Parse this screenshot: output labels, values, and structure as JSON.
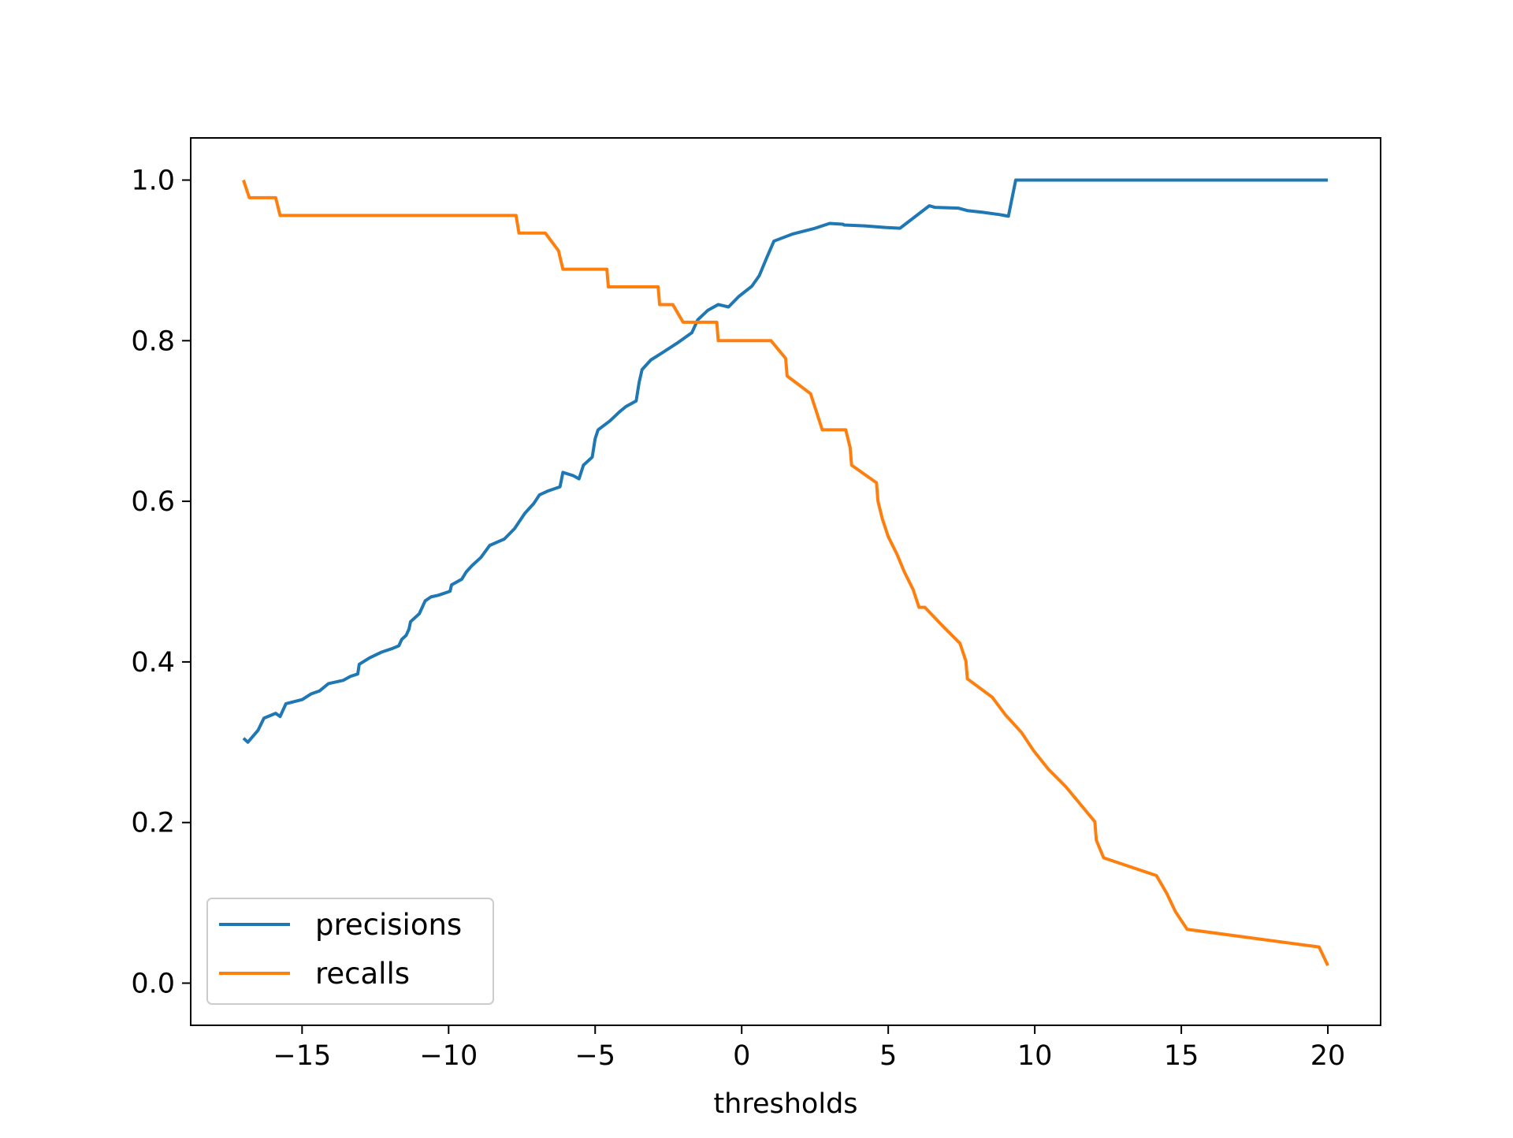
{
  "chart_data": {
    "type": "line",
    "title": "",
    "xlabel": "thresholds",
    "ylabel": "",
    "xlim": [
      -18.8,
      21.8
    ],
    "ylim": [
      -0.0525,
      1.0525
    ],
    "xticks": [
      -15,
      -10,
      -5,
      0,
      5,
      10,
      15,
      20
    ],
    "xtick_labels": [
      "−15",
      "−10",
      "−5",
      "0",
      "5",
      "10",
      "15",
      "20"
    ],
    "yticks": [
      0.0,
      0.2,
      0.4,
      0.6,
      0.8,
      1.0
    ],
    "ytick_labels": [
      "0.0",
      "0.2",
      "0.4",
      "0.6",
      "0.8",
      "1.0"
    ],
    "grid": false,
    "legend_position": "lower-left",
    "series": [
      {
        "name": "precisions",
        "color": "#1f77b4",
        "points": [
          [
            -17.0,
            0.305
          ],
          [
            -16.85,
            0.3
          ],
          [
            -16.5,
            0.315
          ],
          [
            -16.3,
            0.33
          ],
          [
            -15.9,
            0.336
          ],
          [
            -15.75,
            0.332
          ],
          [
            -15.55,
            0.348
          ],
          [
            -15.0,
            0.353
          ],
          [
            -14.7,
            0.36
          ],
          [
            -14.4,
            0.364
          ],
          [
            -14.1,
            0.373
          ],
          [
            -13.6,
            0.377
          ],
          [
            -13.35,
            0.382
          ],
          [
            -13.1,
            0.385
          ],
          [
            -13.05,
            0.397
          ],
          [
            -12.7,
            0.405
          ],
          [
            -12.3,
            0.412
          ],
          [
            -11.9,
            0.417
          ],
          [
            -11.7,
            0.42
          ],
          [
            -11.6,
            0.428
          ],
          [
            -11.45,
            0.433
          ],
          [
            -11.35,
            0.441
          ],
          [
            -11.3,
            0.45
          ],
          [
            -11.0,
            0.46
          ],
          [
            -10.8,
            0.476
          ],
          [
            -10.6,
            0.481
          ],
          [
            -10.35,
            0.483
          ],
          [
            -9.95,
            0.488
          ],
          [
            -9.9,
            0.496
          ],
          [
            -9.55,
            0.503
          ],
          [
            -9.4,
            0.512
          ],
          [
            -9.2,
            0.52
          ],
          [
            -8.9,
            0.53
          ],
          [
            -8.6,
            0.545
          ],
          [
            -8.1,
            0.553
          ],
          [
            -7.75,
            0.566
          ],
          [
            -7.4,
            0.585
          ],
          [
            -7.1,
            0.597
          ],
          [
            -6.9,
            0.608
          ],
          [
            -6.6,
            0.613
          ],
          [
            -6.2,
            0.618
          ],
          [
            -6.1,
            0.636
          ],
          [
            -5.75,
            0.632
          ],
          [
            -5.55,
            0.628
          ],
          [
            -5.4,
            0.645
          ],
          [
            -5.1,
            0.655
          ],
          [
            -5.0,
            0.678
          ],
          [
            -4.9,
            0.689
          ],
          [
            -4.5,
            0.7
          ],
          [
            -4.15,
            0.712
          ],
          [
            -3.95,
            0.718
          ],
          [
            -3.6,
            0.725
          ],
          [
            -3.5,
            0.748
          ],
          [
            -3.4,
            0.764
          ],
          [
            -3.1,
            0.776
          ],
          [
            -2.75,
            0.784
          ],
          [
            -2.2,
            0.797
          ],
          [
            -1.7,
            0.81
          ],
          [
            -1.5,
            0.826
          ],
          [
            -1.15,
            0.838
          ],
          [
            -0.8,
            0.845
          ],
          [
            -0.45,
            0.842
          ],
          [
            -0.1,
            0.855
          ],
          [
            0.35,
            0.868
          ],
          [
            0.6,
            0.881
          ],
          [
            0.85,
            0.903
          ],
          [
            1.1,
            0.924
          ],
          [
            1.75,
            0.933
          ],
          [
            2.5,
            0.94
          ],
          [
            3.0,
            0.946
          ],
          [
            3.45,
            0.945
          ],
          [
            3.5,
            0.944
          ],
          [
            4.2,
            0.943
          ],
          [
            4.9,
            0.941
          ],
          [
            5.4,
            0.94
          ],
          [
            6.4,
            0.968
          ],
          [
            6.6,
            0.966
          ],
          [
            7.4,
            0.965
          ],
          [
            7.7,
            0.962
          ],
          [
            8.2,
            0.96
          ],
          [
            8.8,
            0.957
          ],
          [
            9.1,
            0.955
          ],
          [
            9.35,
            1.0
          ],
          [
            15.3,
            1.0
          ],
          [
            20.0,
            1.0
          ]
        ]
      },
      {
        "name": "recalls",
        "color": "#ff7f0e",
        "points": [
          [
            -17.0,
            1.0
          ],
          [
            -16.8,
            0.978
          ],
          [
            -15.9,
            0.978
          ],
          [
            -15.75,
            0.956
          ],
          [
            -7.7,
            0.956
          ],
          [
            -7.6,
            0.934
          ],
          [
            -6.7,
            0.934
          ],
          [
            -6.25,
            0.912
          ],
          [
            -6.1,
            0.889
          ],
          [
            -4.6,
            0.889
          ],
          [
            -4.55,
            0.867
          ],
          [
            -2.85,
            0.867
          ],
          [
            -2.8,
            0.845
          ],
          [
            -2.35,
            0.845
          ],
          [
            -2.0,
            0.823
          ],
          [
            -0.85,
            0.823
          ],
          [
            -0.8,
            0.8
          ],
          [
            1.0,
            0.8
          ],
          [
            1.5,
            0.778
          ],
          [
            1.55,
            0.756
          ],
          [
            2.35,
            0.734
          ],
          [
            2.75,
            0.689
          ],
          [
            3.55,
            0.689
          ],
          [
            3.7,
            0.667
          ],
          [
            3.75,
            0.645
          ],
          [
            4.6,
            0.623
          ],
          [
            4.65,
            0.6
          ],
          [
            4.8,
            0.578
          ],
          [
            5.0,
            0.556
          ],
          [
            5.3,
            0.534
          ],
          [
            5.55,
            0.512
          ],
          [
            5.85,
            0.49
          ],
          [
            6.05,
            0.468
          ],
          [
            6.25,
            0.468
          ],
          [
            6.85,
            0.445
          ],
          [
            7.45,
            0.423
          ],
          [
            7.65,
            0.401
          ],
          [
            7.7,
            0.379
          ],
          [
            8.55,
            0.356
          ],
          [
            9.0,
            0.334
          ],
          [
            9.55,
            0.312
          ],
          [
            9.95,
            0.29
          ],
          [
            10.45,
            0.267
          ],
          [
            11.05,
            0.245
          ],
          [
            11.55,
            0.223
          ],
          [
            12.05,
            0.201
          ],
          [
            12.1,
            0.178
          ],
          [
            12.35,
            0.156
          ],
          [
            14.15,
            0.134
          ],
          [
            14.5,
            0.112
          ],
          [
            14.8,
            0.089
          ],
          [
            15.2,
            0.067
          ],
          [
            19.7,
            0.045
          ],
          [
            20.0,
            0.022
          ]
        ]
      }
    ]
  }
}
